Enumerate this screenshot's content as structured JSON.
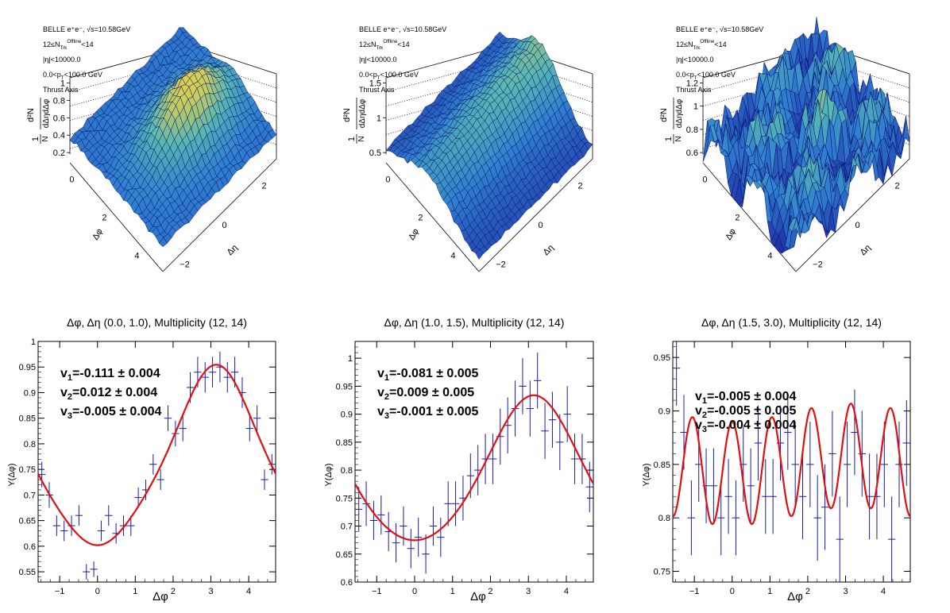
{
  "surface_panels": [
    {
      "info": [
        "BELLE e⁺e⁻, √s=10.58GeV",
        "12≤N_Trk^Offline<14",
        "|η|<10000.0",
        "0.0<p_T<100.0 GeV",
        "Thrust Axis"
      ],
      "zlabel": "1/N^trig d²N^pair/dΔηdΔφ",
      "zticks": [
        "0.2",
        "0.4",
        "0.6",
        "0.8",
        "1"
      ],
      "phi_ticks": [
        "0",
        "2",
        "4"
      ],
      "eta_ticks": [
        "−2",
        "0",
        "2"
      ],
      "phi_label": "Δφ",
      "eta_label": "Δη"
    },
    {
      "info": [
        "BELLE e⁺e⁻, √s=10.58GeV",
        "12≤N_Trk^Offline<14",
        "|η|<10000.0",
        "0.0<p_T<100.0 GeV",
        "Thrust Axis"
      ],
      "zlabel": "1/N^trig d²N^pair/dΔηdΔφ",
      "zticks": [
        "0.5",
        "1",
        "1.5"
      ],
      "phi_ticks": [
        "0",
        "2",
        "4"
      ],
      "eta_ticks": [
        "−2",
        "0",
        "2"
      ],
      "phi_label": "Δφ",
      "eta_label": "Δη"
    },
    {
      "info": [
        "BELLE e⁺e⁻, √s=10.58GeV",
        "12≤N_Trk^Offline<14",
        "|η|<10000.0",
        "0.0<p_T<100.0 GeV",
        "Thrust Axis"
      ],
      "zlabel": "1/N^trig d²N^pair/dΔηdΔφ",
      "zticks": [
        "0.6",
        "0.8",
        "1",
        "1.2"
      ],
      "phi_ticks": [
        "0",
        "2",
        "4"
      ],
      "eta_ticks": [
        "−2",
        "0",
        "2"
      ],
      "phi_label": "Δφ",
      "eta_label": "Δη"
    }
  ],
  "colors": {
    "points": "#1a1aa0",
    "fit": "#e01010",
    "surface_low": "#1e2ea8",
    "surface_high": "#f6d63c"
  },
  "chart_data": [
    {
      "type": "scatter",
      "title": "Δφ, Δη (0.0, 1.0), Multiplicity (12, 14)",
      "xlabel": "Δφ",
      "ylabel": "Y(Δφ)",
      "xlim": [
        -1.5708,
        4.7124
      ],
      "ylim": [
        0.53,
        1.0
      ],
      "xticks": [
        -1,
        0,
        1,
        2,
        3,
        4
      ],
      "yticks": [
        0.55,
        0.6,
        0.65,
        0.7,
        0.75,
        0.8,
        0.85,
        0.9,
        0.95,
        1
      ],
      "grid": false,
      "annotations": [
        {
          "label": "v",
          "sub": "1",
          "value": "=-0.111 ± 0.004"
        },
        {
          "label": "v",
          "sub": "2",
          "value": "=0.012 ± 0.004"
        },
        {
          "label": "v",
          "sub": "3",
          "value": "=-0.005 ± 0.004"
        }
      ],
      "fit": {
        "a0": 0.76,
        "v1": -0.111,
        "v2": 0.012,
        "v3": -0.005
      },
      "points": {
        "y": [
          0.74,
          0.7,
          0.64,
          0.63,
          0.64,
          0.66,
          0.55,
          0.555,
          0.63,
          0.66,
          0.625,
          0.64,
          0.64,
          0.695,
          0.71,
          0.76,
          0.73,
          0.85,
          0.82,
          0.83,
          0.91,
          0.94,
          0.93,
          0.94,
          0.95,
          0.93,
          0.94,
          0.9,
          0.83,
          0.85,
          0.73,
          0.76
        ],
        "err": [
          0.025,
          0.025,
          0.02,
          0.02,
          0.02,
          0.02,
          0.015,
          0.015,
          0.02,
          0.02,
          0.02,
          0.02,
          0.02,
          0.02,
          0.02,
          0.02,
          0.02,
          0.025,
          0.025,
          0.025,
          0.03,
          0.03,
          0.03,
          0.03,
          0.03,
          0.03,
          0.03,
          0.03,
          0.025,
          0.025,
          0.02,
          0.02
        ]
      }
    },
    {
      "type": "scatter",
      "title": "Δφ, Δη (1.0, 1.5), Multiplicity (12, 14)",
      "xlabel": "Δφ",
      "ylabel": "Y(Δφ)",
      "xlim": [
        -1.5708,
        4.7124
      ],
      "ylim": [
        0.6,
        1.03
      ],
      "xticks": [
        -1,
        0,
        1,
        2,
        3,
        4
      ],
      "yticks": [
        0.6,
        0.65,
        0.7,
        0.75,
        0.8,
        0.85,
        0.9,
        0.95,
        1
      ],
      "grid": false,
      "annotations": [
        {
          "label": "v",
          "sub": "1",
          "value": "=-0.081 ± 0.005"
        },
        {
          "label": "v",
          "sub": "2",
          "value": "=0.009 ± 0.005"
        },
        {
          "label": "v",
          "sub": "3",
          "value": "=-0.001 ± 0.005"
        }
      ],
      "fit": {
        "a0": 0.79,
        "v1": -0.081,
        "v2": 0.009,
        "v3": -0.001
      },
      "points": {
        "y": [
          0.73,
          0.74,
          0.71,
          0.72,
          0.69,
          0.67,
          0.7,
          0.66,
          0.68,
          0.65,
          0.7,
          0.68,
          0.74,
          0.74,
          0.75,
          0.79,
          0.8,
          0.82,
          0.82,
          0.86,
          0.88,
          0.91,
          0.95,
          0.91,
          0.96,
          0.87,
          0.89,
          0.85,
          0.9,
          0.82,
          0.82,
          0.77
        ],
        "err": [
          0.04,
          0.04,
          0.035,
          0.035,
          0.035,
          0.035,
          0.035,
          0.035,
          0.035,
          0.035,
          0.035,
          0.035,
          0.04,
          0.04,
          0.04,
          0.04,
          0.045,
          0.045,
          0.045,
          0.05,
          0.05,
          0.05,
          0.05,
          0.05,
          0.05,
          0.05,
          0.05,
          0.05,
          0.05,
          0.045,
          0.045,
          0.045
        ]
      }
    },
    {
      "type": "scatter",
      "title": "Δφ, Δη (1.5, 3.0), Multiplicity (12, 14)",
      "xlabel": "Δφ",
      "ylabel": "Y(Δφ)",
      "xlim": [
        -1.5708,
        4.7124
      ],
      "ylim": [
        0.74,
        0.965
      ],
      "xticks": [
        -1,
        0,
        1,
        2,
        3,
        4
      ],
      "yticks": [
        0.75,
        0.8,
        0.85,
        0.9,
        0.95
      ],
      "grid": false,
      "annotations": [
        {
          "label": "v",
          "sub": "1",
          "value": "=-0.005 ± 0.004"
        },
        {
          "label": "v",
          "sub": "2",
          "value": "=-0.005 ± 0.005"
        },
        {
          "label": "v",
          "sub": "3",
          "value": "=-0.004 ± 0.004"
        }
      ],
      "fit": {
        "a0": 0.85,
        "v1": -0.005,
        "v2": -0.005,
        "v3": -0.004,
        "v6": 0.0285
      },
      "points": {
        "y": [
          0.94,
          0.88,
          0.8,
          0.85,
          0.83,
          0.83,
          0.8,
          0.82,
          0.8,
          0.85,
          0.83,
          0.87,
          0.82,
          0.82,
          0.87,
          0.88,
          0.85,
          0.82,
          0.85,
          0.8,
          0.81,
          0.86,
          0.78,
          0.85,
          0.88,
          0.86,
          0.82,
          0.82,
          0.85,
          0.78,
          0.85,
          0.87
        ],
        "err": [
          0.035,
          0.035,
          0.035,
          0.035,
          0.035,
          0.035,
          0.035,
          0.035,
          0.035,
          0.035,
          0.035,
          0.035,
          0.035,
          0.035,
          0.035,
          0.035,
          0.04,
          0.04,
          0.04,
          0.04,
          0.04,
          0.04,
          0.04,
          0.04,
          0.04,
          0.04,
          0.04,
          0.04,
          0.04,
          0.04,
          0.04,
          0.04
        ]
      }
    }
  ]
}
